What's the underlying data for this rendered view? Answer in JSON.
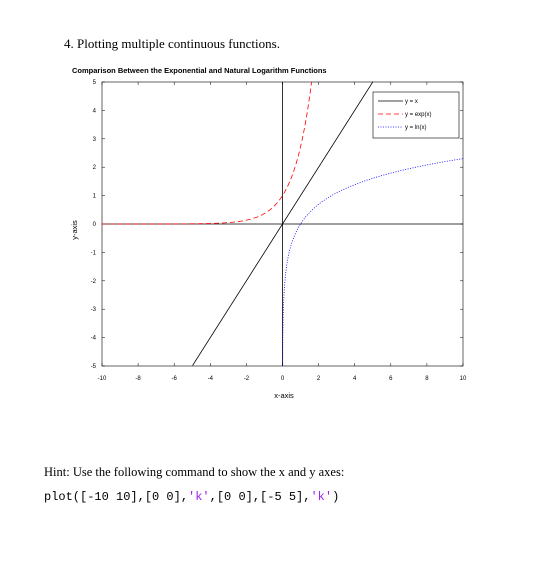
{
  "heading": "4.  Plotting multiple continuous functions.",
  "hint": {
    "text": "Hint: Use the following command to show the x and y axes:",
    "code_parts": [
      {
        "text": "plot([-10 10],[0 0],",
        "kind": "plain"
      },
      {
        "text": "'k'",
        "kind": "string"
      },
      {
        "text": ",[0 0],[-5 5],",
        "kind": "plain"
      },
      {
        "text": "'k'",
        "kind": "string"
      },
      {
        "text": ")",
        "kind": "plain"
      }
    ]
  },
  "chart_data": {
    "type": "line",
    "title": "Comparison Between the Exponential and Natural Logarithm Functions",
    "xlabel": "x-axis",
    "ylabel": "y-axis",
    "xlim": [
      -10,
      10
    ],
    "ylim": [
      -5,
      5
    ],
    "xticks": [
      -10,
      -8,
      -6,
      -4,
      -2,
      0,
      2,
      4,
      6,
      8,
      10
    ],
    "yticks": [
      -5,
      -4,
      -3,
      -2,
      -1,
      0,
      1,
      2,
      3,
      4,
      5
    ],
    "grid": false,
    "legend_position": "top-right",
    "series": [
      {
        "name": "y = x",
        "function": "x",
        "color": "#000000",
        "style": "solid"
      },
      {
        "name": "y = exp(x)",
        "function": "exp",
        "color": "#ff0000",
        "style": "dashed"
      },
      {
        "name": "y = ln(x)",
        "function": "ln",
        "color": "#0000ff",
        "style": "dotted"
      }
    ],
    "reference_lines": [
      {
        "x": [
          -10,
          10
        ],
        "y": [
          0,
          0
        ],
        "color": "#000000"
      },
      {
        "x": [
          0,
          0
        ],
        "y": [
          -5,
          5
        ],
        "color": "#000000"
      }
    ]
  }
}
